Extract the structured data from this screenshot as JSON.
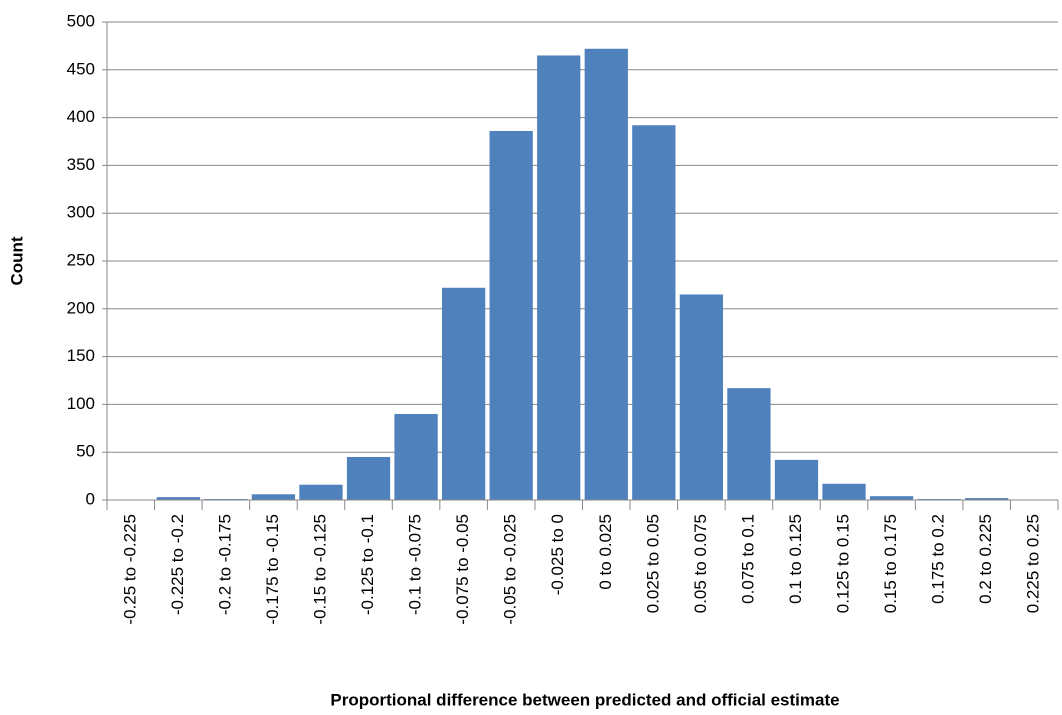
{
  "chart_data": {
    "type": "bar",
    "x_label": "Proportional difference between predicted and official estimate",
    "y_label": "Count",
    "categories": [
      "-0.25 to -0.225",
      "-0.225 to -0.2",
      "-0.2 to -0.175",
      "-0.175 to -0.15",
      "-0.15 to -0.125",
      "-0.125 to -0.1",
      "-0.1 to -0.075",
      "-0.075 to -0.05",
      "-0.05 to -0.025",
      "-0.025 to 0",
      "0 to 0.025",
      "0.025 to 0.05",
      "0.05 to 0.075",
      "0.075 to 0.1",
      "0.1 to 0.125",
      "0.125 to 0.15",
      "0.15 to 0.175",
      "0.175 to 0.2",
      "0.2 to 0.225",
      "0.225 to 0.25"
    ],
    "values": [
      0,
      3,
      1,
      6,
      16,
      45,
      90,
      222,
      386,
      465,
      472,
      392,
      215,
      117,
      42,
      17,
      4,
      1,
      2,
      0
    ],
    "color": "#4f81bd",
    "ylim": [
      0,
      500
    ],
    "yticks": [
      0,
      50,
      100,
      150,
      200,
      250,
      300,
      350,
      400,
      450,
      500
    ],
    "grid": true
  }
}
